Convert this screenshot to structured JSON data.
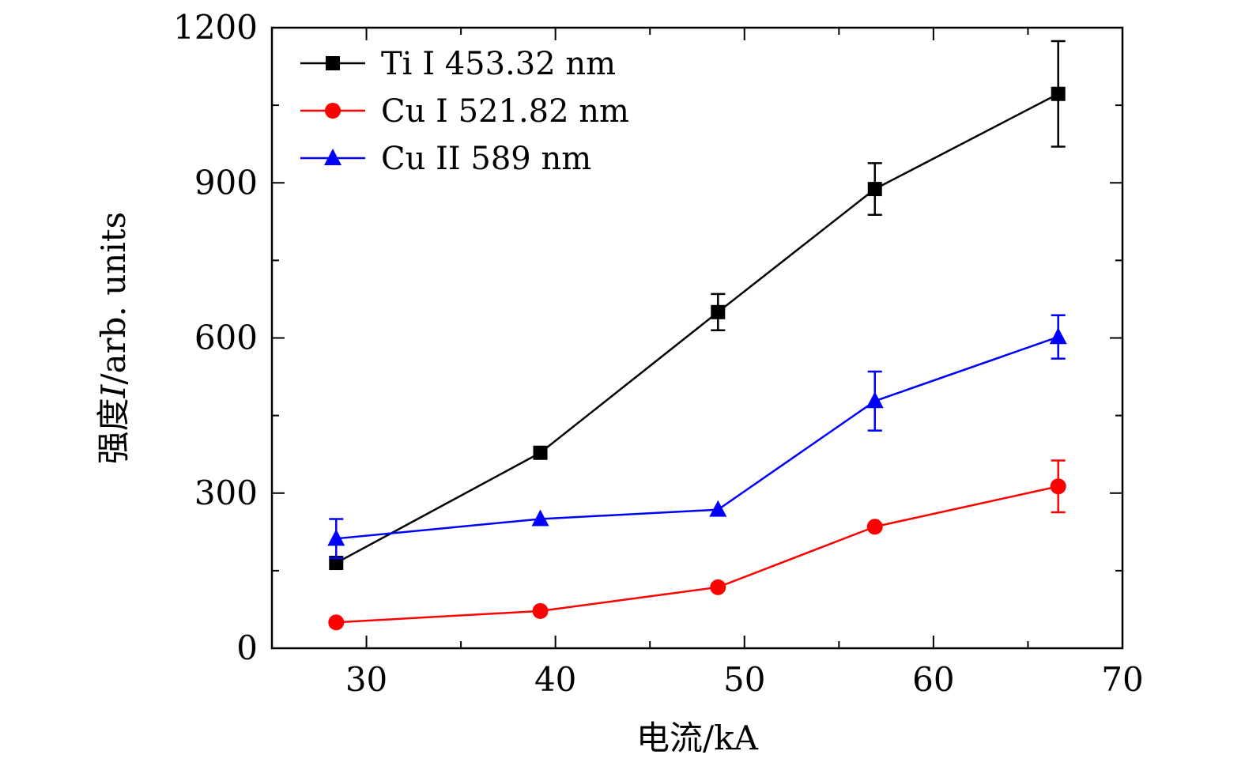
{
  "chart_data": {
    "type": "line",
    "title": "",
    "xlabel": "电流/kA",
    "ylabel_prefix": "强度",
    "ylabel_var": "I",
    "ylabel_suffix": "/arb. units",
    "xlim": [
      25,
      70
    ],
    "ylim": [
      0,
      1200
    ],
    "x_ticks": [
      30,
      40,
      50,
      60,
      70
    ],
    "y_ticks": [
      0,
      300,
      600,
      900,
      1200
    ],
    "x_minor_ticks": [
      35,
      45,
      55,
      65
    ],
    "y_minor_ticks": [
      150,
      450,
      750,
      1050
    ],
    "grid": false,
    "legend_position": "top-left",
    "series": [
      {
        "name": "Ti I 453.32 nm",
        "color": "#000000",
        "marker": "square",
        "x": [
          28.4,
          39.2,
          48.6,
          56.9,
          66.6
        ],
        "y": [
          165,
          378,
          650,
          888,
          1072
        ],
        "err": [
          null,
          null,
          35,
          50,
          102
        ]
      },
      {
        "name": "Cu I 521.82 nm",
        "color": "#ff0000",
        "marker": "circle",
        "x": [
          28.4,
          39.2,
          48.6,
          56.9,
          66.6
        ],
        "y": [
          50,
          72,
          118,
          235,
          313
        ],
        "err": [
          null,
          null,
          null,
          null,
          50
        ]
      },
      {
        "name": "Cu II 589 nm",
        "color": "#0000ff",
        "marker": "triangle",
        "x": [
          28.4,
          39.2,
          48.6,
          56.9,
          66.6
        ],
        "y": [
          212,
          250,
          268,
          478,
          602
        ],
        "err": [
          38,
          null,
          null,
          57,
          42
        ]
      }
    ]
  }
}
